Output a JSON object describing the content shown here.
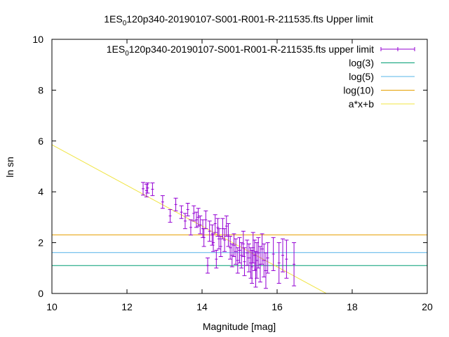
{
  "chart_data": {
    "type": "scatter",
    "title": {
      "prefix": "1ES",
      "subscript": "0",
      "suffix": "120p340-20190107-S001-R001-R-211535.fts Upper limit"
    },
    "xlabel": "Magnitude [mag]",
    "ylabel": "ln sn",
    "xlim": [
      10,
      20
    ],
    "ylim": [
      0,
      10
    ],
    "xticks": [
      10,
      12,
      14,
      16,
      18,
      20
    ],
    "yticks": [
      0,
      2,
      4,
      6,
      8,
      10
    ],
    "grid": false,
    "legend_position": "top-right",
    "series": [
      {
        "name": {
          "prefix": "1ES",
          "subscript": "0",
          "suffix": "120p340-20190107-S001-R001-R-211535.fts upper limit"
        },
        "kind": "errorbars",
        "color": "#9400d3",
        "points": [
          [
            12.43,
            4.12,
            0.25
          ],
          [
            12.52,
            4.05,
            0.25
          ],
          [
            12.55,
            4.15,
            0.2
          ],
          [
            12.68,
            4.1,
            0.25
          ],
          [
            12.95,
            3.6,
            0.25
          ],
          [
            13.15,
            3.05,
            0.25
          ],
          [
            13.3,
            3.5,
            0.25
          ],
          [
            13.45,
            3.2,
            0.25
          ],
          [
            13.55,
            2.85,
            0.3
          ],
          [
            13.62,
            3.3,
            0.25
          ],
          [
            13.7,
            2.6,
            0.3
          ],
          [
            13.78,
            3.15,
            0.3
          ],
          [
            13.85,
            2.9,
            0.3
          ],
          [
            13.9,
            3.0,
            0.35
          ],
          [
            13.95,
            2.7,
            0.35
          ],
          [
            14.02,
            2.55,
            0.35
          ],
          [
            14.05,
            2.2,
            0.35
          ],
          [
            14.1,
            2.9,
            0.35
          ],
          [
            14.15,
            1.1,
            0.3
          ],
          [
            14.2,
            2.45,
            0.4
          ],
          [
            14.27,
            2.3,
            0.4
          ],
          [
            14.3,
            2.0,
            0.35
          ],
          [
            14.35,
            2.75,
            0.35
          ],
          [
            14.38,
            1.35,
            0.35
          ],
          [
            14.42,
            2.6,
            0.35
          ],
          [
            14.45,
            2.15,
            0.4
          ],
          [
            14.5,
            1.85,
            0.4
          ],
          [
            14.55,
            2.55,
            0.4
          ],
          [
            14.6,
            2.1,
            0.45
          ],
          [
            14.65,
            2.65,
            0.4
          ],
          [
            14.7,
            2.3,
            0.45
          ],
          [
            14.75,
            1.8,
            0.45
          ],
          [
            14.8,
            1.5,
            0.45
          ],
          [
            14.85,
            1.9,
            0.45
          ],
          [
            14.9,
            1.65,
            0.5
          ],
          [
            14.95,
            1.3,
            0.5
          ],
          [
            15.0,
            1.7,
            0.5
          ],
          [
            15.05,
            1.5,
            0.5
          ],
          [
            15.1,
            1.95,
            0.5
          ],
          [
            15.13,
            1.25,
            0.55
          ],
          [
            15.2,
            1.6,
            0.5
          ],
          [
            15.25,
            1.4,
            0.55
          ],
          [
            15.3,
            1.2,
            0.6
          ],
          [
            15.33,
            1.05,
            0.65
          ],
          [
            15.36,
            1.8,
            0.6
          ],
          [
            15.4,
            1.5,
            0.6
          ],
          [
            15.43,
            0.95,
            0.7
          ],
          [
            15.46,
            1.3,
            0.7
          ],
          [
            15.5,
            1.6,
            0.6
          ],
          [
            15.55,
            1.15,
            0.7
          ],
          [
            15.6,
            1.75,
            0.6
          ],
          [
            15.65,
            1.3,
            0.65
          ],
          [
            15.7,
            0.9,
            0.7
          ],
          [
            15.75,
            1.4,
            0.6
          ],
          [
            15.9,
            1.55,
            0.65
          ],
          [
            16.05,
            1.2,
            0.8
          ],
          [
            16.15,
            1.5,
            0.65
          ],
          [
            16.25,
            1.35,
            0.75
          ],
          [
            16.45,
            1.15,
            0.85
          ]
        ]
      },
      {
        "name": "log(3)",
        "kind": "hline",
        "value": 1.0986,
        "color": "#009e73"
      },
      {
        "name": "log(5)",
        "kind": "hline",
        "value": 1.6094,
        "color": "#56b4e9"
      },
      {
        "name": "log(10)",
        "kind": "hline",
        "value": 2.3026,
        "color": "#e69f00"
      },
      {
        "name": "a*x+b",
        "kind": "line",
        "slope": -0.8,
        "intercept": 13.85,
        "color": "#f0e442"
      }
    ]
  }
}
